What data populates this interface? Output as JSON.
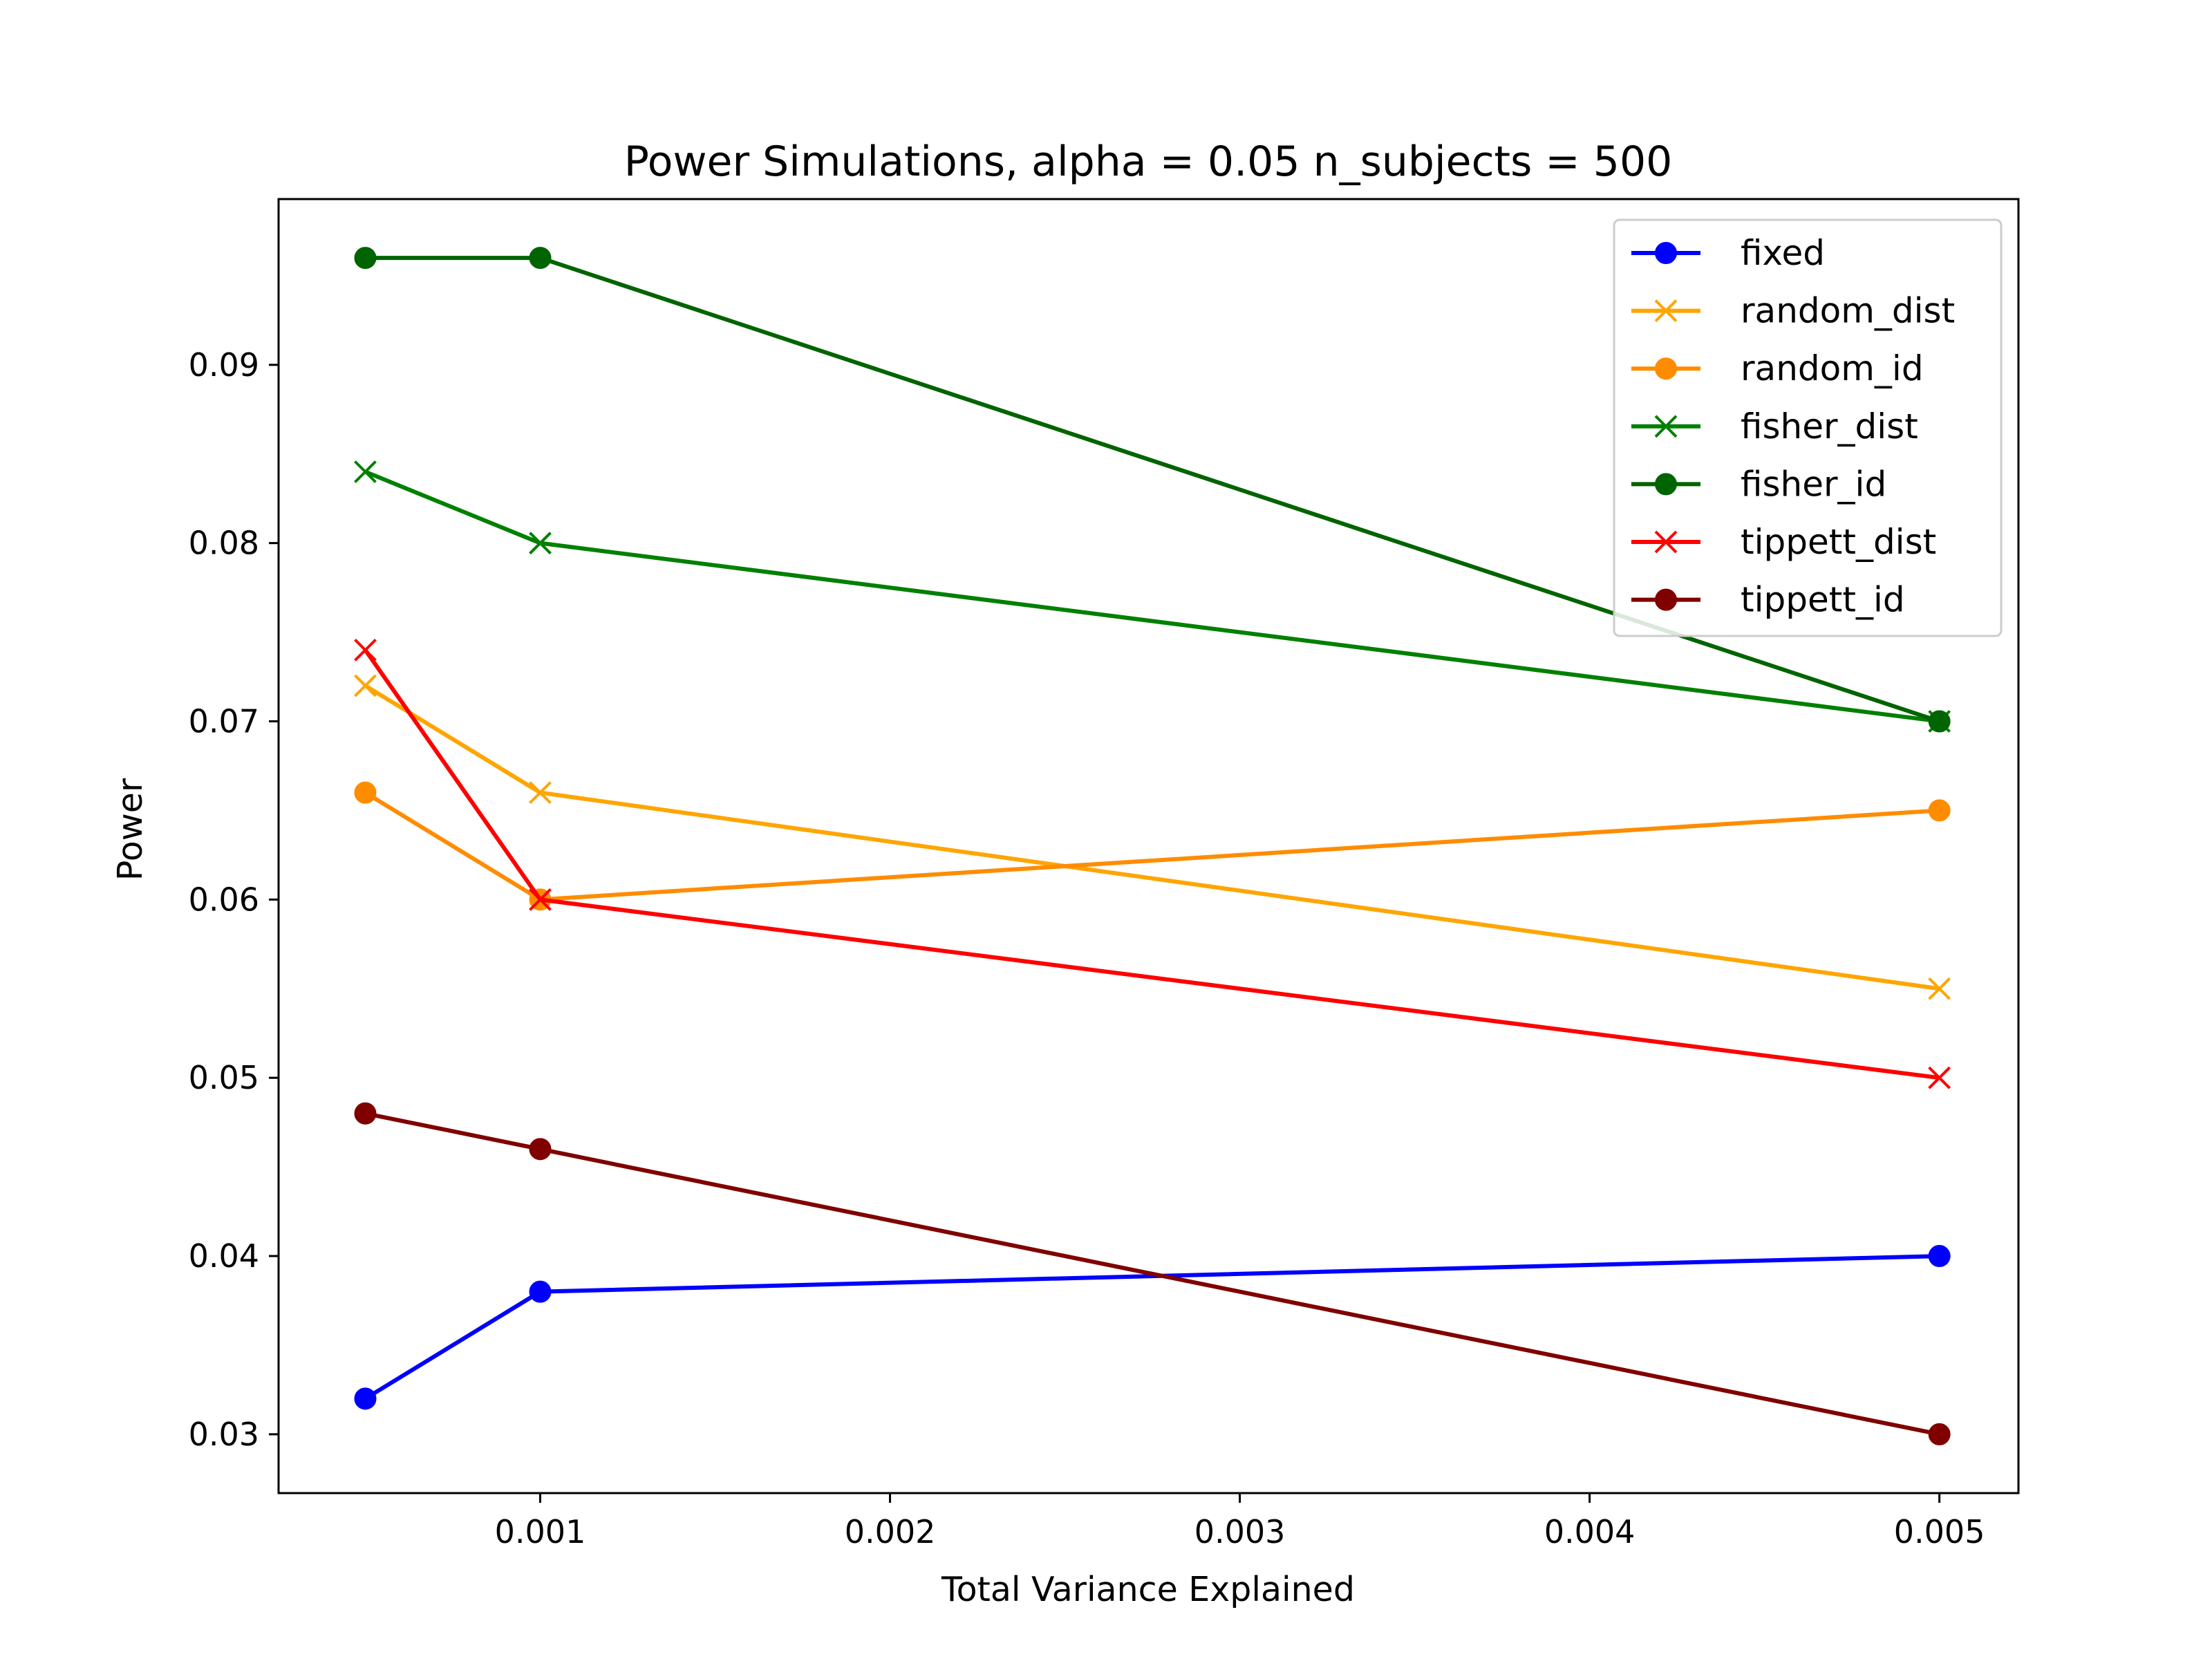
{
  "chart_data": {
    "type": "line",
    "title": "Power Simulations, alpha = 0.05 n_subjects = 500",
    "xlabel": "Total Variance Explained",
    "ylabel": "Power",
    "x": [
      0.0005,
      0.001,
      0.005
    ],
    "xlim": [
      0.000252,
      0.005226
    ],
    "ylim": [
      0.0267,
      0.0993
    ],
    "xticks": [
      0.001,
      0.002,
      0.003,
      0.004,
      0.005
    ],
    "xtick_labels": [
      "0.001",
      "0.002",
      "0.003",
      "0.004",
      "0.005"
    ],
    "yticks": [
      0.03,
      0.04,
      0.05,
      0.06,
      0.07,
      0.08,
      0.09
    ],
    "ytick_labels": [
      "0.03",
      "0.04",
      "0.05",
      "0.06",
      "0.07",
      "0.08",
      "0.09"
    ],
    "grid": false,
    "legend_position": "top-right",
    "series": [
      {
        "name": "fixed",
        "values": [
          0.032,
          0.038,
          0.04
        ],
        "color": "#0000ff",
        "marker": "circle"
      },
      {
        "name": "random_dist",
        "values": [
          0.072,
          0.066,
          0.055
        ],
        "color": "#ffa500",
        "marker": "x"
      },
      {
        "name": "random_id",
        "values": [
          0.066,
          0.06,
          0.065
        ],
        "color": "#ff8c00",
        "marker": "circle"
      },
      {
        "name": "fisher_dist",
        "values": [
          0.084,
          0.08,
          0.07
        ],
        "color": "#008000",
        "marker": "x"
      },
      {
        "name": "fisher_id",
        "values": [
          0.096,
          0.096,
          0.07
        ],
        "color": "#006400",
        "marker": "circle"
      },
      {
        "name": "tippett_dist",
        "values": [
          0.074,
          0.06,
          0.05
        ],
        "color": "#ff0000",
        "marker": "x"
      },
      {
        "name": "tippett_id",
        "values": [
          0.048,
          0.046,
          0.03
        ],
        "color": "#800000",
        "marker": "circle"
      }
    ]
  }
}
